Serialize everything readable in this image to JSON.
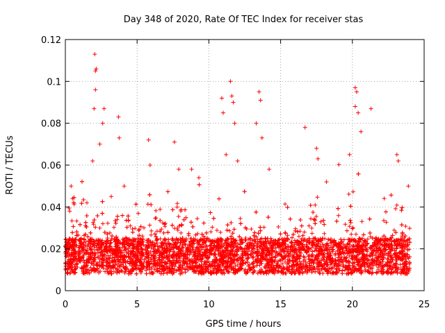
{
  "chart_data": {
    "type": "scatter",
    "title": "Day 348 of 2020, Rate Of TEC Index for receiver stas",
    "xlabel": "GPS time / hours",
    "ylabel": "ROTI / TECUs",
    "xlim": [
      0,
      25
    ],
    "ylim": [
      0,
      0.12
    ],
    "xticks": [
      0,
      5,
      10,
      15,
      20,
      25
    ],
    "xtick_labels": [
      "0",
      "5",
      "10",
      "15",
      "20",
      "25"
    ],
    "yticks": [
      0,
      0.02,
      0.04,
      0.06,
      0.08,
      0.1,
      0.12
    ],
    "ytick_labels": [
      "0",
      "0.02",
      "0.04",
      "0.06",
      "0.08",
      "0.1",
      "0.12"
    ],
    "grid": true,
    "marker": "+",
    "color": "#ff0000",
    "x_range_hours": [
      0,
      24
    ],
    "baseline_band": [
      0.008,
      0.025
    ],
    "series": [
      {
        "name": "ROTI",
        "points": [
          {
            "x": 0.3,
            "y": 0.038
          },
          {
            "x": 0.4,
            "y": 0.05
          },
          {
            "x": 0.5,
            "y": 0.044
          },
          {
            "x": 1.5,
            "y": 0.042
          },
          {
            "x": 1.9,
            "y": 0.062
          },
          {
            "x": 2.0,
            "y": 0.087
          },
          {
            "x": 2.1,
            "y": 0.096
          },
          {
            "x": 2.1,
            "y": 0.105
          },
          {
            "x": 2.15,
            "y": 0.106
          },
          {
            "x": 2.05,
            "y": 0.113
          },
          {
            "x": 2.4,
            "y": 0.07
          },
          {
            "x": 2.6,
            "y": 0.08
          },
          {
            "x": 2.7,
            "y": 0.087
          },
          {
            "x": 3.2,
            "y": 0.045
          },
          {
            "x": 3.7,
            "y": 0.083
          },
          {
            "x": 3.75,
            "y": 0.073
          },
          {
            "x": 4.1,
            "y": 0.05
          },
          {
            "x": 5.8,
            "y": 0.072
          },
          {
            "x": 5.9,
            "y": 0.06
          },
          {
            "x": 7.6,
            "y": 0.071
          },
          {
            "x": 7.9,
            "y": 0.058
          },
          {
            "x": 8.8,
            "y": 0.058
          },
          {
            "x": 9.3,
            "y": 0.054
          },
          {
            "x": 10.9,
            "y": 0.092
          },
          {
            "x": 11.0,
            "y": 0.085
          },
          {
            "x": 11.2,
            "y": 0.065
          },
          {
            "x": 11.5,
            "y": 0.1
          },
          {
            "x": 11.6,
            "y": 0.093
          },
          {
            "x": 11.7,
            "y": 0.09
          },
          {
            "x": 11.8,
            "y": 0.08
          },
          {
            "x": 12.0,
            "y": 0.062
          },
          {
            "x": 13.5,
            "y": 0.095
          },
          {
            "x": 13.6,
            "y": 0.091
          },
          {
            "x": 13.3,
            "y": 0.08
          },
          {
            "x": 13.7,
            "y": 0.073
          },
          {
            "x": 14.2,
            "y": 0.058
          },
          {
            "x": 16.7,
            "y": 0.078
          },
          {
            "x": 17.5,
            "y": 0.068
          },
          {
            "x": 17.6,
            "y": 0.063
          },
          {
            "x": 18.2,
            "y": 0.052
          },
          {
            "x": 19.8,
            "y": 0.065
          },
          {
            "x": 20.2,
            "y": 0.097
          },
          {
            "x": 20.3,
            "y": 0.095
          },
          {
            "x": 20.2,
            "y": 0.088
          },
          {
            "x": 20.4,
            "y": 0.085
          },
          {
            "x": 20.6,
            "y": 0.076
          },
          {
            "x": 21.3,
            "y": 0.087
          },
          {
            "x": 23.1,
            "y": 0.065
          },
          {
            "x": 23.2,
            "y": 0.062
          },
          {
            "x": 23.9,
            "y": 0.05
          }
        ]
      }
    ]
  }
}
